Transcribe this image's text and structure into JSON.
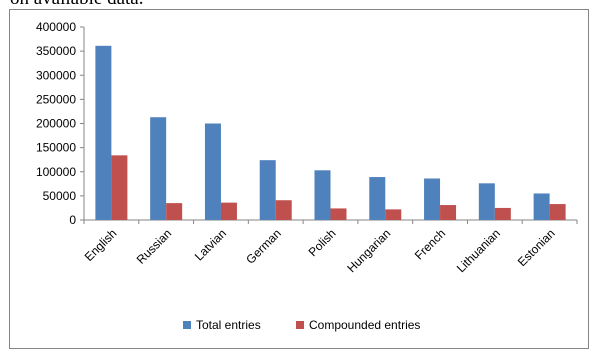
{
  "header_text": "on available data.",
  "colors": {
    "total": "#4F81BD",
    "compounded": "#C0504D",
    "axis": "#868686"
  },
  "chart_data": {
    "type": "bar",
    "categories": [
      "English",
      "Russian",
      "Latvian",
      "German",
      "Polish",
      "Hungarian",
      "French",
      "Lithuanian",
      "Estonian"
    ],
    "series": [
      {
        "name": "Total entries",
        "values": [
          361000,
          213000,
          200000,
          124000,
          103000,
          89000,
          86000,
          76000,
          55000
        ]
      },
      {
        "name": "Compounded entries",
        "values": [
          134000,
          35000,
          36000,
          41000,
          24000,
          22000,
          31000,
          25000,
          33000
        ]
      }
    ],
    "ylim": [
      0,
      400000
    ],
    "yticks": [
      "0",
      "50000",
      "100000",
      "150000",
      "200000",
      "250000",
      "300000",
      "350000",
      "400000"
    ],
    "title": "",
    "xlabel": "",
    "ylabel": "",
    "grid": false,
    "legend_position": "bottom"
  }
}
